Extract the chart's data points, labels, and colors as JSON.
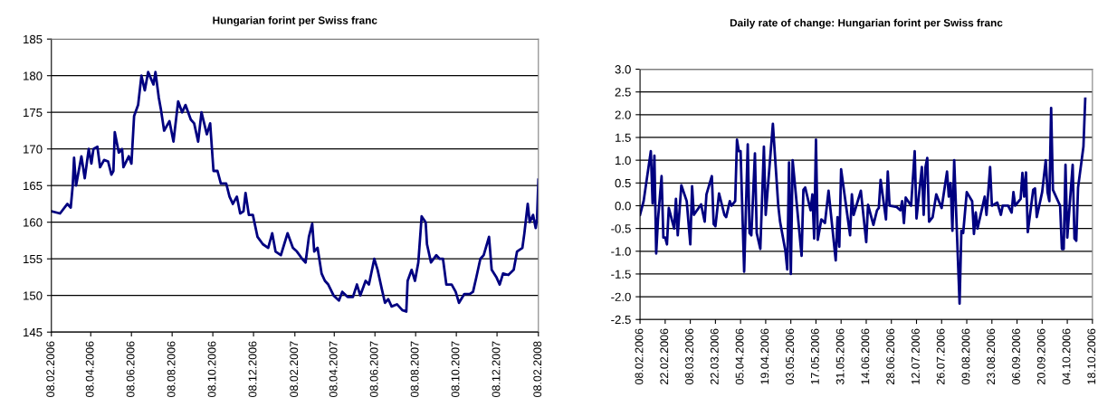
{
  "chart_data": [
    {
      "type": "line",
      "title": "Hungarian forint per Swiss franc",
      "x": [
        "2006-02-08",
        "2006-02-21",
        "2006-03-04",
        "2006-03-09",
        "2006-03-12",
        "2006-03-14",
        "2006-03-17",
        "2006-03-25",
        "2006-03-30",
        "2006-04-05",
        "2006-04-09",
        "2006-04-12",
        "2006-04-18",
        "2006-04-22",
        "2006-04-28",
        "2006-05-04",
        "2006-05-09",
        "2006-05-12",
        "2006-05-14",
        "2006-05-20",
        "2006-05-25",
        "2006-05-27",
        "2006-06-04",
        "2006-06-08",
        "2006-06-12",
        "2006-06-18",
        "2006-06-23",
        "2006-06-28",
        "2006-07-03",
        "2006-07-11",
        "2006-07-14",
        "2006-07-19",
        "2006-07-22",
        "2006-07-27",
        "2006-08-04",
        "2006-08-10",
        "2006-08-17",
        "2006-08-23",
        "2006-08-28",
        "2006-09-05",
        "2006-09-10",
        "2006-09-16",
        "2006-09-21",
        "2006-09-29",
        "2006-10-04",
        "2006-10-09",
        "2006-10-15",
        "2006-10-20",
        "2006-10-28",
        "2006-11-02",
        "2006-11-07",
        "2006-11-13",
        "2006-11-18",
        "2006-11-23",
        "2006-11-26",
        "2006-12-01",
        "2006-12-07",
        "2006-12-14",
        "2006-12-22",
        "2006-12-30",
        "2007-01-05",
        "2007-01-10",
        "2007-01-18",
        "2007-01-23",
        "2007-01-28",
        "2007-02-05",
        "2007-02-11",
        "2007-02-19",
        "2007-02-24",
        "2007-03-01",
        "2007-03-06",
        "2007-03-09",
        "2007-03-14",
        "2007-03-20",
        "2007-03-25",
        "2007-03-30",
        "2007-04-07",
        "2007-04-15",
        "2007-04-20",
        "2007-04-28",
        "2007-05-06",
        "2007-05-12",
        "2007-05-17",
        "2007-05-25",
        "2007-05-30",
        "2007-06-07",
        "2007-06-12",
        "2007-06-18",
        "2007-06-23",
        "2007-06-28",
        "2007-07-03",
        "2007-07-11",
        "2007-07-19",
        "2007-07-25",
        "2007-07-27",
        "2007-08-02",
        "2007-08-07",
        "2007-08-12",
        "2007-08-17",
        "2007-08-23",
        "2007-08-25",
        "2007-08-31",
        "2007-09-08",
        "2007-09-13",
        "2007-09-18",
        "2007-09-23",
        "2007-10-01",
        "2007-10-07",
        "2007-10-12",
        "2007-10-20",
        "2007-10-28",
        "2007-11-02",
        "2007-11-07",
        "2007-11-13",
        "2007-11-18",
        "2007-11-26",
        "2007-11-30",
        "2007-12-07",
        "2007-12-12",
        "2007-12-17",
        "2007-12-25",
        "2008-01-02",
        "2008-01-07",
        "2008-01-15",
        "2008-01-18",
        "2008-01-23",
        "2008-01-26",
        "2008-01-31",
        "2008-02-04",
        "2008-02-06",
        "2008-02-08"
      ],
      "series": [
        {
          "color": "#000080",
          "values": [
            161.5,
            161.2,
            162.5,
            162,
            165,
            168.8,
            165,
            169,
            166,
            170,
            168,
            170,
            170.3,
            167.5,
            168.5,
            168.3,
            166.5,
            167,
            172.3,
            169.5,
            170,
            167.5,
            169,
            168,
            174.5,
            176,
            180,
            178,
            180.5,
            178.8,
            180.5,
            177,
            175.5,
            172.5,
            173.8,
            171,
            176.5,
            175,
            176,
            174,
            173.5,
            171,
            175,
            172,
            173.5,
            167,
            167,
            165.3,
            165.3,
            163.5,
            162.5,
            163.5,
            161.2,
            161.5,
            164,
            161,
            161,
            158,
            157,
            156.5,
            158.5,
            156,
            155.5,
            157,
            158.5,
            156.5,
            156,
            155,
            154.5,
            158,
            159.8,
            156,
            156.5,
            153,
            152,
            151.5,
            150,
            149.3,
            150.5,
            149.8,
            149.8,
            151.5,
            150,
            152,
            151.5,
            155,
            153.5,
            151,
            149,
            149.5,
            148.5,
            148.8,
            148,
            147.8,
            152,
            153.5,
            152,
            154.5,
            160.8,
            160,
            157,
            154.5,
            155.5,
            155,
            155,
            151.5,
            151.5,
            150.5,
            149,
            150.2,
            150.2,
            150.5,
            152.5,
            155,
            155.5,
            158,
            153.5,
            152.5,
            151.5,
            153,
            152.8,
            153.5,
            156,
            156.5,
            158.5,
            162.5,
            160,
            161,
            159.2,
            160.5,
            165.8
          ]
        }
      ],
      "xlim": [
        "2006-02-08",
        "2008-02-08"
      ],
      "xticks": [
        {
          "value": "2006-02-08",
          "label": "08.02.2006"
        },
        {
          "value": "2006-04-08",
          "label": "08.04.2006"
        },
        {
          "value": "2006-06-08",
          "label": "08.06.2006"
        },
        {
          "value": "2006-08-08",
          "label": "08.08.2006"
        },
        {
          "value": "2006-10-08",
          "label": "08.10.2006"
        },
        {
          "value": "2006-12-08",
          "label": "08.12.2006"
        },
        {
          "value": "2007-02-08",
          "label": "08.02.2007"
        },
        {
          "value": "2007-04-08",
          "label": "08.04.2007"
        },
        {
          "value": "2007-06-08",
          "label": "08.06.2007"
        },
        {
          "value": "2007-08-08",
          "label": "08.08.2007"
        },
        {
          "value": "2007-10-08",
          "label": "08.10.2007"
        },
        {
          "value": "2007-12-08",
          "label": "08.12.2007"
        },
        {
          "value": "2008-02-08",
          "label": "08.02.2008"
        }
      ],
      "ylim": [
        145,
        185
      ],
      "yticks": [
        145,
        150,
        155,
        160,
        165,
        170,
        175,
        180,
        185
      ],
      "grid": "y",
      "legend": false,
      "marker": "none",
      "line_style": "solid"
    },
    {
      "type": "line",
      "title": "Daily rate of change: Hungarian forint per Swiss franc",
      "x": [
        "2006-02-08",
        "2006-02-10",
        "2006-02-14",
        "2006-02-15",
        "2006-02-16",
        "2006-02-17",
        "2006-02-18",
        "2006-02-20",
        "2006-02-21",
        "2006-02-22",
        "2006-02-23",
        "2006-02-24",
        "2006-02-27",
        "2006-02-28",
        "2006-03-01",
        "2006-03-03",
        "2006-03-06",
        "2006-03-08",
        "2006-03-09",
        "2006-03-10",
        "2006-03-14",
        "2006-03-16",
        "2006-03-17",
        "2006-03-20",
        "2006-03-21",
        "2006-03-22",
        "2006-03-24",
        "2006-03-27",
        "2006-03-28",
        "2006-03-30",
        "2006-03-31",
        "2006-04-02",
        "2006-04-03",
        "2006-04-04",
        "2006-04-05",
        "2006-04-07",
        "2006-04-09",
        "2006-04-10",
        "2006-04-11",
        "2006-04-13",
        "2006-04-14",
        "2006-04-16",
        "2006-04-18",
        "2006-04-19",
        "2006-04-23",
        "2006-04-26",
        "2006-04-27",
        "2006-04-30",
        "2006-05-01",
        "2006-05-02",
        "2006-05-03",
        "2006-05-04",
        "2006-05-09",
        "2006-05-10",
        "2006-05-11",
        "2006-05-14",
        "2006-05-15",
        "2006-05-16",
        "2006-05-17",
        "2006-05-18",
        "2006-05-20",
        "2006-05-22",
        "2006-05-24",
        "2006-05-28",
        "2006-05-29",
        "2006-05-30",
        "2006-05-31",
        "2006-06-05",
        "2006-06-06",
        "2006-06-07",
        "2006-06-11",
        "2006-06-14",
        "2006-06-15",
        "2006-06-18",
        "2006-06-20",
        "2006-06-21",
        "2006-06-22",
        "2006-06-25",
        "2006-06-26",
        "2006-06-27",
        "2006-07-01",
        "2006-07-03",
        "2006-07-04",
        "2006-07-05",
        "2006-07-06",
        "2006-07-09",
        "2006-07-11",
        "2006-07-12",
        "2006-07-15",
        "2006-07-16",
        "2006-07-17",
        "2006-07-18",
        "2006-07-19",
        "2006-07-21",
        "2006-07-23",
        "2006-07-26",
        "2006-07-29",
        "2006-07-30",
        "2006-07-31",
        "2006-08-01",
        "2006-08-02",
        "2006-08-05",
        "2006-08-06",
        "2006-08-07",
        "2006-08-09",
        "2006-08-12",
        "2006-08-13",
        "2006-08-14",
        "2006-08-15",
        "2006-08-19",
        "2006-08-20",
        "2006-08-22",
        "2006-08-23",
        "2006-08-26",
        "2006-08-28",
        "2006-08-29",
        "2006-09-01",
        "2006-09-03",
        "2006-09-04",
        "2006-09-05",
        "2006-09-08",
        "2006-09-09",
        "2006-09-10",
        "2006-09-11",
        "2006-09-12",
        "2006-09-15",
        "2006-09-16",
        "2006-09-17",
        "2006-09-20",
        "2006-09-22",
        "2006-09-23",
        "2006-09-24",
        "2006-09-25",
        "2006-09-26",
        "2006-09-30",
        "2006-10-01",
        "2006-10-02",
        "2006-10-03",
        "2006-10-04",
        "2006-10-07",
        "2006-10-08",
        "2006-10-09",
        "2006-10-10",
        "2006-10-13",
        "2006-10-14"
      ],
      "series": [
        {
          "color": "#000080",
          "values": [
            -0.2,
            0.1,
            1.2,
            0.05,
            1.1,
            -1.05,
            -0.3,
            0.65,
            -0.7,
            -0.7,
            -0.85,
            -0.05,
            -0.5,
            0.15,
            -0.65,
            0.45,
            0.1,
            -0.85,
            0.43,
            -0.2,
            0.03,
            -0.35,
            0.25,
            0.65,
            -0.4,
            -0.45,
            0.27,
            -0.2,
            -0.25,
            0.1,
            0.0,
            0.1,
            1.45,
            1.2,
            1.2,
            -1.45,
            1.35,
            -0.6,
            -0.65,
            1.15,
            -0.6,
            -0.95,
            1.3,
            -0.2,
            1.8,
            0.0,
            -0.35,
            -1.0,
            -1.4,
            0.95,
            -1.5,
            1.0,
            -1.1,
            0.35,
            0.4,
            -0.1,
            0.25,
            -0.72,
            1.45,
            -0.75,
            -0.3,
            -0.38,
            0.33,
            -1.2,
            -0.25,
            -0.9,
            0.8,
            -0.65,
            0.25,
            -0.2,
            0.33,
            -0.8,
            0.02,
            -0.42,
            -0.1,
            -0.05,
            0.57,
            -0.3,
            0.75,
            0.0,
            -0.03,
            -0.1,
            0.1,
            -0.38,
            0.18,
            0.0,
            1.2,
            -0.28,
            0.85,
            -0.2,
            0.85,
            1.05,
            -0.35,
            -0.25,
            0.25,
            -0.05,
            0.75,
            0.2,
            0.5,
            -0.55,
            1.0,
            -2.15,
            -0.55,
            -0.6,
            0.3,
            0.1,
            -0.62,
            -0.15,
            -0.5,
            0.2,
            -0.2,
            0.85,
            0.0,
            0.07,
            -0.2,
            0.0,
            0.0,
            -0.15,
            0.3,
            0.0,
            0.15,
            0.72,
            0.2,
            0.73,
            -0.58,
            0.35,
            0.38,
            -0.25,
            0.3,
            1.0,
            0.3,
            0.1,
            2.15,
            0.35,
            0.0,
            -0.95,
            -0.95,
            0.9,
            -0.7,
            0.9,
            -0.72,
            -0.77,
            0.4,
            1.3,
            2.35
          ]
        }
      ],
      "xlim": [
        "2006-02-08",
        "2006-10-18"
      ],
      "xticks": [
        {
          "value": "2006-02-08",
          "label": "08.02.2006"
        },
        {
          "value": "2006-02-22",
          "label": "22.02.2006"
        },
        {
          "value": "2006-03-08",
          "label": "08.03.2006"
        },
        {
          "value": "2006-03-22",
          "label": "22.03.2006"
        },
        {
          "value": "2006-04-05",
          "label": "05.04.2006"
        },
        {
          "value": "2006-04-19",
          "label": "19.04.2006"
        },
        {
          "value": "2006-05-03",
          "label": "03.05.2006"
        },
        {
          "value": "2006-05-17",
          "label": "17.05.2006"
        },
        {
          "value": "2006-05-31",
          "label": "31.05.2006"
        },
        {
          "value": "2006-06-14",
          "label": "14.06.2006"
        },
        {
          "value": "2006-06-28",
          "label": "28.06.2006"
        },
        {
          "value": "2006-07-12",
          "label": "12.07.2006"
        },
        {
          "value": "2006-07-26",
          "label": "26.07.2006"
        },
        {
          "value": "2006-08-09",
          "label": "09.08.2006"
        },
        {
          "value": "2006-08-23",
          "label": "23.08.2006"
        },
        {
          "value": "2006-09-06",
          "label": "06.09.2006"
        },
        {
          "value": "2006-09-20",
          "label": "20.09.2006"
        },
        {
          "value": "2006-10-04",
          "label": "04.10.2006"
        },
        {
          "value": "2006-10-18",
          "label": "18.10.2006"
        }
      ],
      "ylim": [
        -2.5,
        3.0
      ],
      "yticks": [
        {
          "value": -2.5,
          "label": "-2.5"
        },
        {
          "value": -2.0,
          "label": "-2.0"
        },
        {
          "value": -1.5,
          "label": "-1.5"
        },
        {
          "value": -1.0,
          "label": "-1.0"
        },
        {
          "value": -0.5,
          "label": "-0.5"
        },
        {
          "value": 0.0,
          "label": "0.0"
        },
        {
          "value": 0.5,
          "label": "0.5"
        },
        {
          "value": 1.0,
          "label": "1.0"
        },
        {
          "value": 1.5,
          "label": "1.5"
        },
        {
          "value": 2.0,
          "label": "2.0"
        },
        {
          "value": 2.5,
          "label": "2.5"
        },
        {
          "value": 3.0,
          "label": "3.0"
        }
      ],
      "grid": "y",
      "legend": false,
      "marker": "none",
      "line_style": "solid"
    }
  ]
}
